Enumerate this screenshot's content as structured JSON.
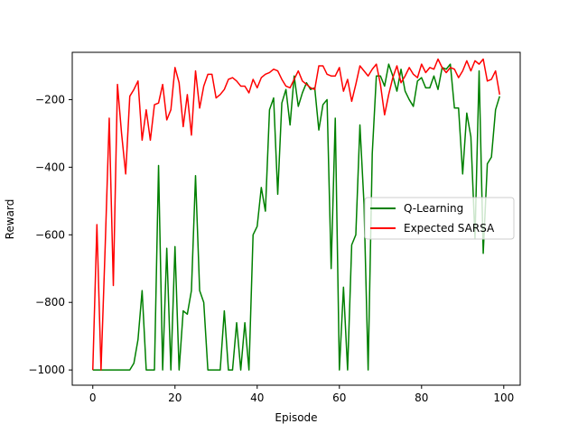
{
  "chart_data": {
    "type": "line",
    "title": "",
    "xlabel": "Episode",
    "ylabel": "Reward",
    "xlim": [
      -5,
      104
    ],
    "ylim": [
      -1045,
      -60
    ],
    "xticks": [
      0,
      20,
      40,
      60,
      80,
      100
    ],
    "yticks": [
      -1000,
      -800,
      -600,
      -400,
      -200
    ],
    "ytick_labels": [
      "−1000",
      "−800",
      "−600",
      "−400",
      "−200"
    ],
    "grid": false,
    "legend_position": "center-right",
    "series": [
      {
        "name": "Q-Learning",
        "color": "#008000",
        "values": [
          -1000,
          -1000,
          -1000,
          -1000,
          -1000,
          -1000,
          -1000,
          -1000,
          -1000,
          -1000,
          -980,
          -910,
          -765,
          -1000,
          -1000,
          -1000,
          -395,
          -1000,
          -640,
          -1000,
          -635,
          -1000,
          -825,
          -835,
          -765,
          -425,
          -765,
          -800,
          -1000,
          -1000,
          -1000,
          -1000,
          -825,
          -1000,
          -1000,
          -860,
          -1000,
          -860,
          -1000,
          -600,
          -575,
          -460,
          -530,
          -230,
          -195,
          -480,
          -210,
          -170,
          -275,
          -130,
          -220,
          -180,
          -150,
          -170,
          -165,
          -290,
          -215,
          -200,
          -700,
          -255,
          -1000,
          -755,
          -1000,
          -630,
          -600,
          -275,
          -510,
          -1000,
          -360,
          -130,
          -130,
          -160,
          -95,
          -130,
          -175,
          -110,
          -175,
          -200,
          -220,
          -145,
          -135,
          -165,
          -165,
          -130,
          -170,
          -105,
          -110,
          -95,
          -225,
          -225,
          -420,
          -240,
          -310,
          -610,
          -115,
          -655,
          -390,
          -370,
          -230,
          -190
        ]
      },
      {
        "name": "Expected SARSA",
        "color": "#ff0000",
        "values": [
          -1000,
          -570,
          -1000,
          -640,
          -255,
          -750,
          -155,
          -300,
          -420,
          -190,
          -170,
          -145,
          -320,
          -230,
          -320,
          -215,
          -210,
          -155,
          -260,
          -230,
          -105,
          -150,
          -280,
          -185,
          -305,
          -115,
          -225,
          -160,
          -125,
          -125,
          -195,
          -185,
          -170,
          -140,
          -135,
          -145,
          -160,
          -160,
          -180,
          -140,
          -165,
          -135,
          -125,
          -120,
          -110,
          -115,
          -140,
          -160,
          -165,
          -140,
          -115,
          -145,
          -155,
          -165,
          -170,
          -100,
          -100,
          -125,
          -130,
          -130,
          -105,
          -175,
          -140,
          -205,
          -155,
          -100,
          -115,
          -130,
          -110,
          -95,
          -155,
          -245,
          -185,
          -135,
          -100,
          -150,
          -130,
          -105,
          -125,
          -135,
          -95,
          -120,
          -105,
          -110,
          -80,
          -105,
          -120,
          -105,
          -110,
          -135,
          -115,
          -85,
          -115,
          -85,
          -95,
          -80,
          -145,
          -140,
          -115,
          -185
        ]
      }
    ]
  }
}
